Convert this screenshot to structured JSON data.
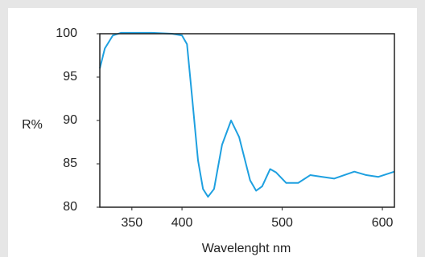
{
  "chart_data": {
    "type": "line",
    "x_label": "Wavelenght nm",
    "y_label": "R%",
    "x": [
      318,
      323,
      331,
      339,
      350,
      370,
      390,
      400,
      405,
      410,
      416,
      421,
      426,
      432,
      440,
      449,
      457,
      468,
      474,
      480,
      488,
      494,
      504,
      516,
      528,
      540,
      552,
      572,
      584,
      596,
      612
    ],
    "series": [
      {
        "color": "#1ea0e0",
        "values": [
          96.0,
          98.3,
          99.8,
          100.1,
          100.1,
          100.1,
          100.0,
          99.8,
          98.8,
          92.8,
          85.4,
          82.1,
          81.2,
          82.1,
          87.2,
          90.0,
          88.1,
          83.1,
          81.9,
          82.4,
          84.4,
          84.0,
          82.8,
          82.8,
          83.7,
          83.5,
          83.3,
          84.1,
          83.7,
          83.5,
          84.1
        ]
      }
    ],
    "xlim": [
      318,
      612
    ],
    "xticks": [
      350,
      400,
      500,
      600
    ],
    "ylim": [
      80,
      100
    ],
    "yticks": [
      80,
      85,
      90,
      95,
      100
    ],
    "grid": false
  }
}
